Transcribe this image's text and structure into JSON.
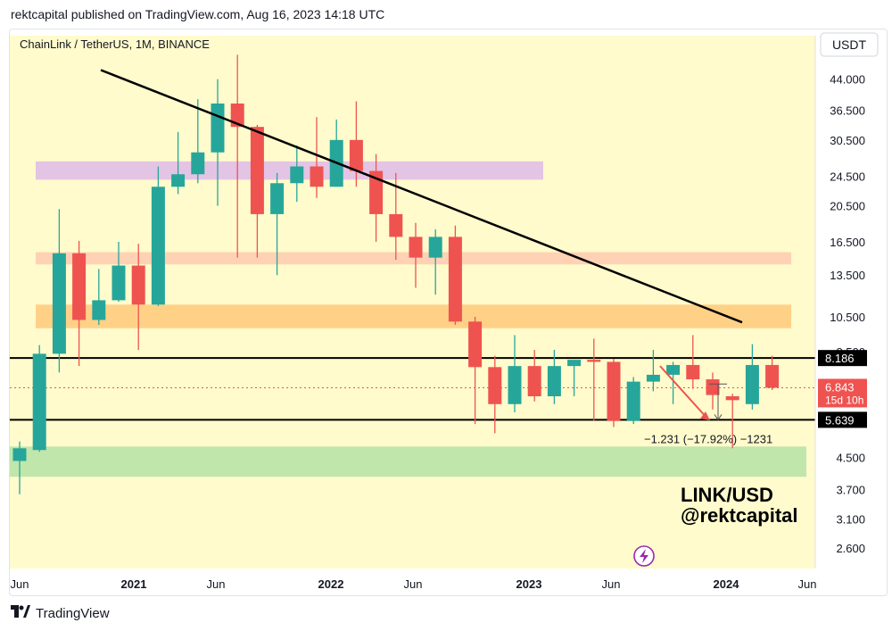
{
  "header": {
    "published_by": "rektcapital published on TradingView.com, Aug 16, 2023 14:18 UTC"
  },
  "footer": {
    "brand": "TradingView"
  },
  "chart_data": {
    "type": "candlestick",
    "title": "ChainLink / TetherUS, 1M, BINANCE",
    "currency_button": "USDT",
    "scale": "log",
    "ylim": [
      2.3,
      50
    ],
    "y_ticks": [
      "44.000",
      "36.500",
      "30.500",
      "24.500",
      "20.500",
      "16.500",
      "13.500",
      "10.500",
      "8.500",
      "4.500",
      "3.700",
      "3.100",
      "2.600"
    ],
    "x_ticks": [
      {
        "label": "Jun",
        "bold": false
      },
      {
        "label": "2021",
        "bold": true
      },
      {
        "label": "Jun",
        "bold": false
      },
      {
        "label": "2022",
        "bold": true
      },
      {
        "label": "Jun",
        "bold": false
      },
      {
        "label": "2023",
        "bold": true
      },
      {
        "label": "Jun",
        "bold": false
      },
      {
        "label": "2024",
        "bold": true
      },
      {
        "label": "Jun",
        "bold": false
      }
    ],
    "candles": [
      {
        "t": "2020-07",
        "o": 4.4,
        "h": 4.95,
        "l": 3.6,
        "c": 4.75
      },
      {
        "t": "2020-08",
        "o": 4.7,
        "h": 8.85,
        "l": 4.65,
        "c": 8.4
      },
      {
        "t": "2020-09",
        "o": 8.4,
        "h": 20.1,
        "l": 7.5,
        "c": 15.4
      },
      {
        "t": "2020-10",
        "o": 15.4,
        "h": 16.6,
        "l": 7.8,
        "c": 10.3
      },
      {
        "t": "2020-11",
        "o": 10.3,
        "h": 14.0,
        "l": 10.0,
        "c": 11.6
      },
      {
        "t": "2020-12",
        "o": 11.6,
        "h": 16.5,
        "l": 11.5,
        "c": 14.3
      },
      {
        "t": "2021-01",
        "o": 14.3,
        "h": 16.3,
        "l": 8.6,
        "c": 11.3
      },
      {
        "t": "2021-02",
        "o": 11.3,
        "h": 26.0,
        "l": 11.2,
        "c": 23.0
      },
      {
        "t": "2021-03",
        "o": 23.0,
        "h": 32.0,
        "l": 22.0,
        "c": 24.8
      },
      {
        "t": "2021-04",
        "o": 24.8,
        "h": 39.0,
        "l": 23.5,
        "c": 28.3
      },
      {
        "t": "2021-05",
        "o": 28.3,
        "h": 44.0,
        "l": 20.5,
        "c": 38.0
      },
      {
        "t": "2021-06",
        "o": 38.0,
        "h": 51.0,
        "l": 15.0,
        "c": 33.0
      },
      {
        "t": "2021-07",
        "o": 33.0,
        "h": 33.4,
        "l": 15.0,
        "c": 19.5
      },
      {
        "t": "2021-08",
        "o": 19.5,
        "h": 25.0,
        "l": 13.5,
        "c": 23.5
      },
      {
        "t": "2021-09",
        "o": 23.5,
        "h": 29.5,
        "l": 21.0,
        "c": 26.0
      },
      {
        "t": "2021-10",
        "o": 26.0,
        "h": 35.0,
        "l": 21.5,
        "c": 23.0
      },
      {
        "t": "2021-11",
        "o": 23.0,
        "h": 34.5,
        "l": 23.0,
        "c": 30.5
      },
      {
        "t": "2021-12",
        "o": 30.5,
        "h": 38.5,
        "l": 23.0,
        "c": 25.3
      },
      {
        "t": "2022-01",
        "o": 25.3,
        "h": 28.0,
        "l": 16.5,
        "c": 19.5
      },
      {
        "t": "2022-02",
        "o": 19.5,
        "h": 25.0,
        "l": 14.8,
        "c": 17.0
      },
      {
        "t": "2022-03",
        "o": 17.0,
        "h": 18.5,
        "l": 12.5,
        "c": 15.0
      },
      {
        "t": "2022-04",
        "o": 15.0,
        "h": 17.8,
        "l": 12.0,
        "c": 17.0
      },
      {
        "t": "2022-05",
        "o": 17.0,
        "h": 18.2,
        "l": 10.0,
        "c": 10.2
      },
      {
        "t": "2022-06",
        "o": 10.2,
        "h": 10.5,
        "l": 5.5,
        "c": 7.75
      },
      {
        "t": "2022-07",
        "o": 7.75,
        "h": 8.3,
        "l": 5.2,
        "c": 6.2
      },
      {
        "t": "2022-08",
        "o": 6.2,
        "h": 9.4,
        "l": 5.9,
        "c": 7.8
      },
      {
        "t": "2022-09",
        "o": 7.8,
        "h": 8.6,
        "l": 6.3,
        "c": 6.5
      },
      {
        "t": "2022-10",
        "o": 6.5,
        "h": 8.6,
        "l": 6.2,
        "c": 7.8
      },
      {
        "t": "2022-11",
        "o": 7.8,
        "h": 8.0,
        "l": 6.5,
        "c": 8.1
      },
      {
        "t": "2022-12",
        "o": 8.1,
        "h": 9.2,
        "l": 5.6,
        "c": 8.0
      },
      {
        "t": "2023-01",
        "o": 8.0,
        "h": 8.15,
        "l": 5.4,
        "c": 5.6
      },
      {
        "t": "2023-02",
        "o": 5.6,
        "h": 7.3,
        "l": 5.5,
        "c": 7.1
      },
      {
        "t": "2023-03",
        "o": 7.1,
        "h": 8.6,
        "l": 6.7,
        "c": 7.4
      },
      {
        "t": "2023-04",
        "o": 7.4,
        "h": 8.0,
        "l": 6.2,
        "c": 7.85
      },
      {
        "t": "2023-05",
        "o": 7.85,
        "h": 9.4,
        "l": 6.8,
        "c": 7.2
      },
      {
        "t": "2023-06",
        "o": 7.2,
        "h": 7.5,
        "l": 6.0,
        "c": 6.55
      },
      {
        "t": "2023-07",
        "o": 6.5,
        "h": 6.6,
        "l": 4.75,
        "c": 6.35
      },
      {
        "t": "2023-08",
        "o": 6.2,
        "h": 8.9,
        "l": 6.0,
        "c": 7.85
      },
      {
        "t": "2023-09",
        "o": 7.85,
        "h": 8.3,
        "l": 6.75,
        "c": 6.843
      }
    ],
    "zones": [
      {
        "name": "purple",
        "from": 24.0,
        "to": 26.8,
        "color": "#e1bee7"
      },
      {
        "name": "salmon",
        "from": 14.4,
        "to": 15.5,
        "color": "#ffcdb2"
      },
      {
        "name": "orange",
        "from": 9.8,
        "to": 11.3,
        "color": "#ffcc80"
      },
      {
        "name": "green",
        "from": 4.0,
        "to": 4.8,
        "color": "#b9e3a8"
      }
    ],
    "levels": [
      {
        "value": 8.186,
        "label": "8.186"
      },
      {
        "value": 5.639,
        "label": "5.639"
      }
    ],
    "current_price": {
      "label": "6.843",
      "countdown": "15d 10h",
      "color": "#ef5350"
    },
    "measure_label": "−1.231 (−17.92%) −1231",
    "watermark": {
      "line1": "LINK/USD",
      "line2": "@rektcapital"
    },
    "colors": {
      "up": "#26a69a",
      "down": "#ef5350",
      "background": "#fffbcc"
    }
  }
}
